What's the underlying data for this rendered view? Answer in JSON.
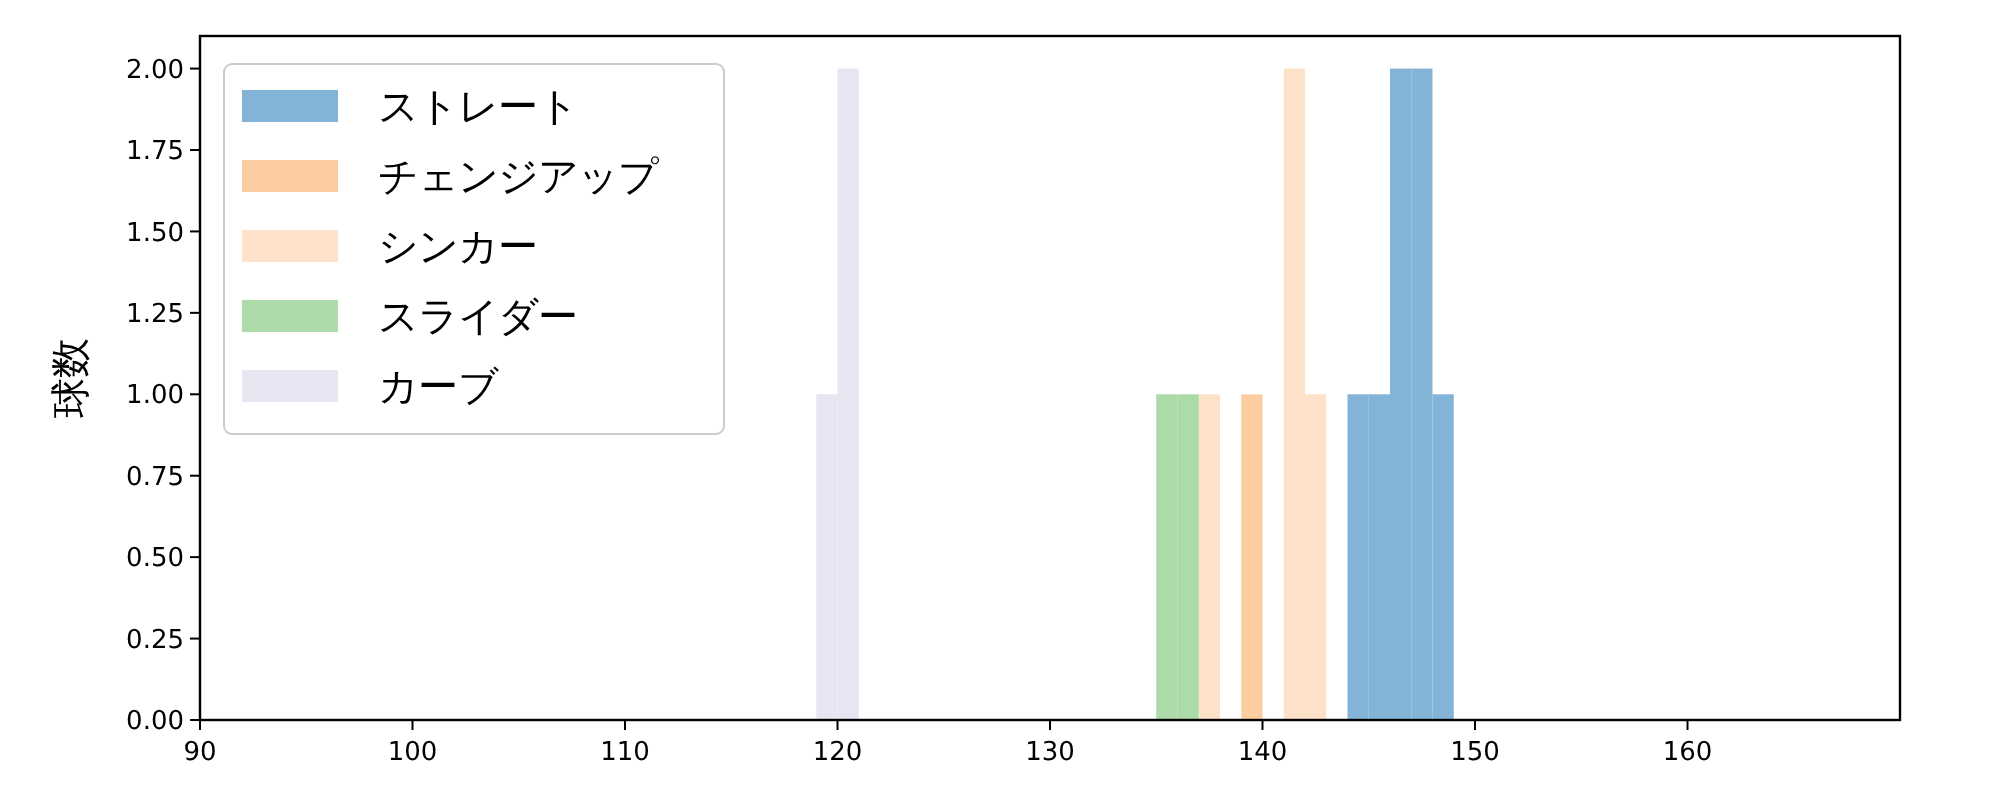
{
  "chart_data": {
    "type": "histogram",
    "ylabel": "球数",
    "xlim": [
      90,
      170
    ],
    "xticks": [
      90,
      100,
      110,
      120,
      130,
      140,
      150,
      160
    ],
    "ylim": [
      0,
      2.1
    ],
    "yticks": [
      {
        "value": 0,
        "label": "0.00"
      },
      {
        "value": 0.25,
        "label": "0.25"
      },
      {
        "value": 0.5,
        "label": "0.50"
      },
      {
        "value": 0.75,
        "label": "0.75"
      },
      {
        "value": 1,
        "label": "1.00"
      },
      {
        "value": 1.25,
        "label": "1.25"
      },
      {
        "value": 1.5,
        "label": "1.50"
      },
      {
        "value": 1.75,
        "label": "1.75"
      },
      {
        "value": 2,
        "label": "2.00"
      }
    ],
    "legend": "top left",
    "bins": [
      119,
      120,
      121,
      122,
      123,
      124,
      125,
      126,
      127,
      128,
      129,
      130,
      131,
      132,
      133,
      134,
      135,
      136,
      137,
      138,
      139,
      140,
      141,
      142,
      143,
      144,
      145,
      146,
      147,
      148,
      149
    ],
    "series": [
      {
        "name": "ストレート",
        "color": "#84b3d8",
        "values": [
          0,
          0,
          0,
          0,
          0,
          0,
          0,
          0,
          0,
          0,
          0,
          0,
          0,
          0,
          0,
          0,
          0,
          0,
          0,
          0,
          0,
          0,
          0,
          0,
          0,
          1,
          1,
          2,
          2,
          1
        ]
      },
      {
        "name": "チェンジアップ",
        "color": "#fdcda2",
        "values": [
          0,
          0,
          0,
          0,
          0,
          0,
          0,
          0,
          0,
          0,
          0,
          0,
          0,
          0,
          0,
          0,
          0,
          0,
          0,
          0,
          1,
          0,
          0,
          0,
          0,
          0,
          0,
          0,
          0,
          0
        ]
      },
      {
        "name": "シンカー",
        "color": "#fde2c9",
        "values": [
          0,
          0,
          0,
          0,
          0,
          0,
          0,
          0,
          0,
          0,
          0,
          0,
          0,
          0,
          0,
          0,
          0,
          0,
          1,
          0,
          0,
          0,
          2,
          1,
          0,
          0,
          0,
          0,
          0,
          0
        ]
      },
      {
        "name": "スライダー",
        "color": "#acdaa8",
        "values": [
          0,
          0,
          0,
          0,
          0,
          0,
          0,
          0,
          0,
          0,
          0,
          0,
          0,
          0,
          0,
          0,
          1,
          1,
          0,
          0,
          0,
          0,
          0,
          0,
          0,
          0,
          0,
          0,
          0,
          0
        ]
      },
      {
        "name": "カーブ",
        "color": "#e6e6f2",
        "values": [
          1,
          2,
          0,
          0,
          0,
          0,
          0,
          0,
          0,
          0,
          0,
          0,
          0,
          0,
          0,
          0,
          0,
          0,
          0,
          0,
          0,
          0,
          0,
          0,
          0,
          0,
          0,
          0,
          0,
          0
        ]
      }
    ]
  }
}
